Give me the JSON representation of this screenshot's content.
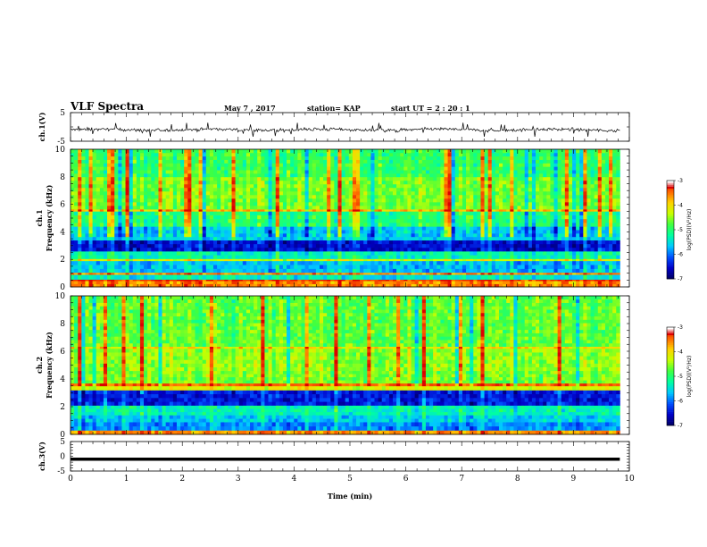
{
  "header": {
    "title": "VLF Spectra",
    "date": "May 7 , 2017",
    "station": "station= KAP",
    "start": "start UT = 2 : 20 : 1"
  },
  "chart_data": [
    {
      "type": "line",
      "name": "ch1-waveform",
      "ylabel": "ch.1(V)",
      "ylim": [
        -5,
        5
      ],
      "yticks": [
        "5",
        "-5"
      ],
      "xlim": [
        0,
        10
      ],
      "x_end": 9.83,
      "description_values": "noise waveform approx mean -1, range -3 to +1"
    },
    {
      "type": "heatmap",
      "name": "ch1-spectrogram",
      "ylabel": "ch.1\nFrequency (kHz)",
      "ylabel_lines": [
        "ch.1",
        "Frequency (kHz)"
      ],
      "ylim": [
        0,
        10
      ],
      "yticks": [
        "0",
        "2",
        "4",
        "6",
        "8",
        "10"
      ],
      "xlim": [
        0,
        10
      ],
      "x_end": 9.83,
      "color_scale": {
        "label": "log(PSD)(V²/Hz)",
        "range": [
          -7,
          -3
        ],
        "ticks": [
          "-3",
          "-4",
          "-5",
          "-6",
          "-7"
        ]
      },
      "bands": [
        {
          "f": [
            0.0,
            0.45
          ],
          "level": -3.6
        },
        {
          "f": [
            0.45,
            0.55
          ],
          "level": -3.2
        },
        {
          "f": [
            0.55,
            0.9
          ],
          "level": -5.4
        },
        {
          "f": [
            0.9,
            1.05
          ],
          "level": -3.6
        },
        {
          "f": [
            1.05,
            1.9
          ],
          "level": -5.7
        },
        {
          "f": [
            1.9,
            2.05
          ],
          "level": -4.3
        },
        {
          "f": [
            2.05,
            2.6
          ],
          "level": -5.3
        },
        {
          "f": [
            2.6,
            3.4
          ],
          "level": -6.5
        },
        {
          "f": [
            3.4,
            4.4
          ],
          "level": -5.6
        },
        {
          "f": [
            4.4,
            5.5
          ],
          "level": -5.0
        },
        {
          "f": [
            5.5,
            5.65
          ],
          "level": -3.8
        },
        {
          "f": [
            5.65,
            8.0
          ],
          "level": -4.6
        },
        {
          "f": [
            8.0,
            10.0
          ],
          "level": -4.9
        }
      ]
    },
    {
      "type": "heatmap",
      "name": "ch2-spectrogram",
      "ylabel": "ch.2\nFrequency (kHz)",
      "ylabel_lines": [
        "ch.2",
        "Frequency (kHz)"
      ],
      "ylim": [
        0,
        10
      ],
      "yticks": [
        "0",
        "2",
        "4",
        "6",
        "8",
        "10"
      ],
      "xlim": [
        0,
        10
      ],
      "x_end": 9.83,
      "color_scale": {
        "label": "log(PSD)(V²/Hz)",
        "range": [
          -7,
          -3
        ],
        "ticks": [
          "-3",
          "-4",
          "-5",
          "-6",
          "-7"
        ]
      },
      "bands": [
        {
          "f": [
            0.0,
            0.3
          ],
          "level": -3.6
        },
        {
          "f": [
            0.3,
            0.9
          ],
          "level": -5.9
        },
        {
          "f": [
            0.9,
            1.4
          ],
          "level": -5.6
        },
        {
          "f": [
            1.4,
            2.1
          ],
          "level": -5.3
        },
        {
          "f": [
            2.1,
            3.2
          ],
          "level": -6.4
        },
        {
          "f": [
            3.2,
            3.5
          ],
          "level": -4.2
        },
        {
          "f": [
            3.5,
            3.7
          ],
          "level": -3.4
        },
        {
          "f": [
            3.7,
            4.6
          ],
          "level": -4.6
        },
        {
          "f": [
            4.6,
            6.2
          ],
          "level": -4.5
        },
        {
          "f": [
            6.2,
            6.35
          ],
          "level": -4.0
        },
        {
          "f": [
            6.35,
            10.0
          ],
          "level": -4.7
        }
      ]
    },
    {
      "type": "line",
      "name": "ch3-waveform",
      "ylabel": "ch.3(V)",
      "ylim": [
        -5,
        5
      ],
      "yticks": [
        "5",
        "0",
        "-5"
      ],
      "xlim": [
        0,
        10
      ],
      "x_end": 9.83,
      "level": -1
    }
  ],
  "xaxis": {
    "label": "Time (min)",
    "ticks": [
      "0",
      "1",
      "2",
      "3",
      "4",
      "5",
      "6",
      "7",
      "8",
      "9",
      "10"
    ]
  },
  "colormap": [
    "#000060",
    "#0000c8",
    "#0050ff",
    "#00c8ff",
    "#00ffa0",
    "#40ff40",
    "#c8ff00",
    "#ffd200",
    "#ff6400",
    "#dc0000",
    "#ffffff"
  ]
}
